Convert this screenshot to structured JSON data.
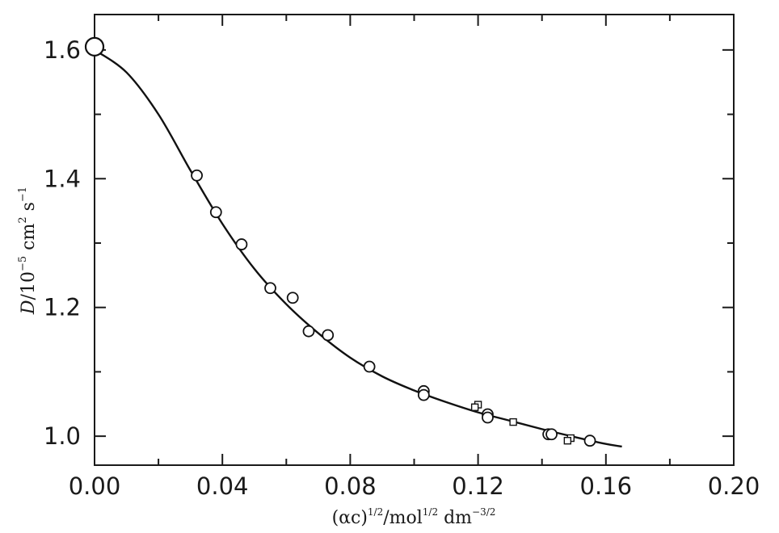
{
  "chart_data": {
    "type": "scatter",
    "title": "",
    "xlabel_parts": {
      "base": "(αc)",
      "base_exp": "1/2",
      "unit1": "/mol",
      "unit1_exp": "1/2",
      "unit2": " dm",
      "unit2_exp": "−3/2"
    },
    "ylabel_parts": {
      "symbol": "D",
      "scale": "/10",
      "scale_exp": "−5",
      "unit1": " cm",
      "unit1_exp": "2",
      "unit2": " s",
      "unit2_exp": "−1"
    },
    "xlim": [
      0.0,
      0.2
    ],
    "ylim": [
      0.955,
      1.655
    ],
    "x_ticks": [
      0.0,
      0.04,
      0.08,
      0.12,
      0.16,
      0.2
    ],
    "x_tick_labels": [
      "0.00",
      "0.04",
      "0.08",
      "0.12",
      "0.16",
      "0.20"
    ],
    "y_ticks": [
      1.0,
      1.2,
      1.4,
      1.6
    ],
    "y_tick_labels": [
      "1.0",
      "1.2",
      "1.4",
      "1.6"
    ],
    "grid": false,
    "series": [
      {
        "marker": "circle",
        "x": [
          0.0,
          0.032,
          0.038,
          0.046,
          0.055,
          0.062,
          0.067,
          0.073,
          0.086,
          0.103,
          0.103,
          0.123,
          0.123,
          0.142,
          0.143,
          0.155
        ],
        "y": [
          1.605,
          1.405,
          1.348,
          1.298,
          1.23,
          1.215,
          1.163,
          1.157,
          1.108,
          1.07,
          1.064,
          1.034,
          1.029,
          1.003,
          1.003,
          0.993
        ]
      },
      {
        "marker": "square",
        "x": [
          0.12,
          0.119,
          0.131,
          0.149,
          0.148
        ],
        "y": [
          1.049,
          1.045,
          1.022,
          0.997,
          0.993
        ]
      },
      {
        "marker": "line",
        "x": [
          0.0,
          0.01,
          0.02,
          0.03,
          0.04,
          0.05,
          0.06,
          0.07,
          0.08,
          0.09,
          0.1,
          0.11,
          0.12,
          0.13,
          0.14,
          0.15,
          0.16,
          0.165
        ],
        "y": [
          1.6,
          1.565,
          1.5,
          1.413,
          1.33,
          1.26,
          1.205,
          1.16,
          1.122,
          1.093,
          1.071,
          1.053,
          1.037,
          1.024,
          1.011,
          0.999,
          0.988,
          0.984
        ]
      }
    ]
  }
}
